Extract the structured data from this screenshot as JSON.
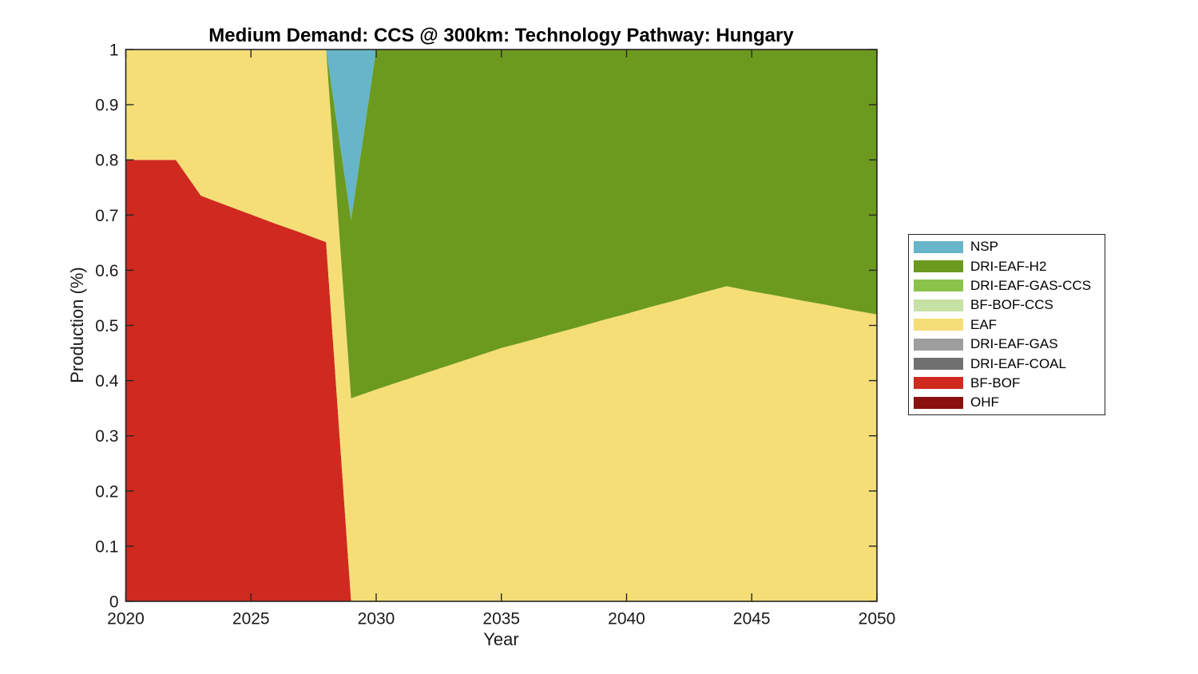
{
  "figure": {
    "background": "#ffffff",
    "axis_color": "#262626",
    "text_color": "#1a1a1a"
  },
  "chart_data": {
    "type": "area",
    "stacked": true,
    "title": "Medium Demand: CCS @ 300km: Technology Pathway: Hungary",
    "xlabel": "Year",
    "ylabel": "Production (%)",
    "xlim": [
      2020,
      2050
    ],
    "ylim": [
      0,
      1
    ],
    "grid": false,
    "legend_position": "right-outside",
    "xticks": [
      2020,
      2025,
      2030,
      2035,
      2040,
      2045,
      2050
    ],
    "xtick_labels": [
      "2020",
      "2025",
      "2030",
      "2035",
      "2040",
      "2045",
      "2050"
    ],
    "yticks": [
      0,
      0.1,
      0.2,
      0.3,
      0.4,
      0.5,
      0.6,
      0.7,
      0.8,
      0.9,
      1
    ],
    "ytick_labels": [
      "0",
      "0.1",
      "0.2",
      "0.3",
      "0.4",
      "0.5",
      "0.6",
      "0.7",
      "0.8",
      "0.9",
      "1"
    ],
    "x": [
      2020,
      2021,
      2022,
      2023,
      2024,
      2025,
      2026,
      2027,
      2028,
      2029,
      2030,
      2031,
      2032,
      2033,
      2034,
      2035,
      2036,
      2037,
      2038,
      2039,
      2040,
      2041,
      2042,
      2043,
      2044,
      2045,
      2046,
      2047,
      2048,
      2049,
      2050
    ],
    "series_note": "listed bottom-to-top of stack; legend shows reverse order",
    "series": [
      {
        "name": "OHF",
        "color": "#8B1010",
        "values": [
          0,
          0,
          0,
          0,
          0,
          0,
          0,
          0,
          0,
          0,
          0,
          0,
          0,
          0,
          0,
          0,
          0,
          0,
          0,
          0,
          0,
          0,
          0,
          0,
          0,
          0,
          0,
          0,
          0,
          0,
          0
        ]
      },
      {
        "name": "BF-BOF",
        "color": "#D0291F",
        "values": [
          0.8,
          0.8,
          0.8,
          0.735,
          0.718,
          0.701,
          0.684,
          0.668,
          0.651,
          0,
          0,
          0,
          0,
          0,
          0,
          0,
          0,
          0,
          0,
          0,
          0,
          0,
          0,
          0,
          0,
          0,
          0,
          0,
          0,
          0,
          0
        ]
      },
      {
        "name": "DRI-EAF-COAL",
        "color": "#707070",
        "values": [
          0,
          0,
          0,
          0,
          0,
          0,
          0,
          0,
          0,
          0,
          0,
          0,
          0,
          0,
          0,
          0,
          0,
          0,
          0,
          0,
          0,
          0,
          0,
          0,
          0,
          0,
          0,
          0,
          0,
          0,
          0
        ]
      },
      {
        "name": "DRI-EAF-GAS",
        "color": "#9E9E9E",
        "values": [
          0,
          0,
          0,
          0,
          0,
          0,
          0,
          0,
          0,
          0,
          0,
          0,
          0,
          0,
          0,
          0,
          0,
          0,
          0,
          0,
          0,
          0,
          0,
          0,
          0,
          0,
          0,
          0,
          0,
          0,
          0
        ]
      },
      {
        "name": "EAF",
        "color": "#F5DE76",
        "values": [
          0.2,
          0.2,
          0.2,
          0.265,
          0.282,
          0.299,
          0.316,
          0.332,
          0.349,
          0.368,
          0.384,
          0.399,
          0.414,
          0.429,
          0.444,
          0.459,
          0.471,
          0.484,
          0.496,
          0.509,
          0.521,
          0.534,
          0.546,
          0.559,
          0.571,
          0.562,
          0.554,
          0.545,
          0.537,
          0.528,
          0.52
        ]
      },
      {
        "name": "BF-BOF-CCS",
        "color": "#C5E1A5",
        "values": [
          0,
          0,
          0,
          0,
          0,
          0,
          0,
          0,
          0,
          0,
          0,
          0,
          0,
          0,
          0,
          0,
          0,
          0,
          0,
          0,
          0,
          0,
          0,
          0,
          0,
          0,
          0,
          0,
          0,
          0,
          0
        ]
      },
      {
        "name": "DRI-EAF-GAS-CCS",
        "color": "#8BC34A",
        "values": [
          0,
          0,
          0,
          0,
          0,
          0,
          0,
          0,
          0,
          0,
          0,
          0,
          0,
          0,
          0,
          0,
          0,
          0,
          0,
          0,
          0,
          0,
          0,
          0,
          0,
          0,
          0,
          0,
          0,
          0,
          0
        ]
      },
      {
        "name": "DRI-EAF-H2",
        "color": "#6C9A1E",
        "values": [
          0,
          0,
          0,
          0,
          0,
          0,
          0,
          0,
          0,
          0.323,
          0.616,
          0.601,
          0.586,
          0.571,
          0.556,
          0.541,
          0.529,
          0.516,
          0.504,
          0.491,
          0.479,
          0.466,
          0.454,
          0.441,
          0.429,
          0.438,
          0.446,
          0.455,
          0.463,
          0.472,
          0.48
        ]
      },
      {
        "name": "NSP",
        "color": "#66B5C8",
        "values": [
          0,
          0,
          0,
          0,
          0,
          0,
          0,
          0,
          0,
          0.309,
          0,
          0,
          0,
          0,
          0,
          0,
          0,
          0,
          0,
          0,
          0,
          0,
          0,
          0,
          0,
          0,
          0,
          0,
          0,
          0,
          0
        ]
      }
    ]
  }
}
